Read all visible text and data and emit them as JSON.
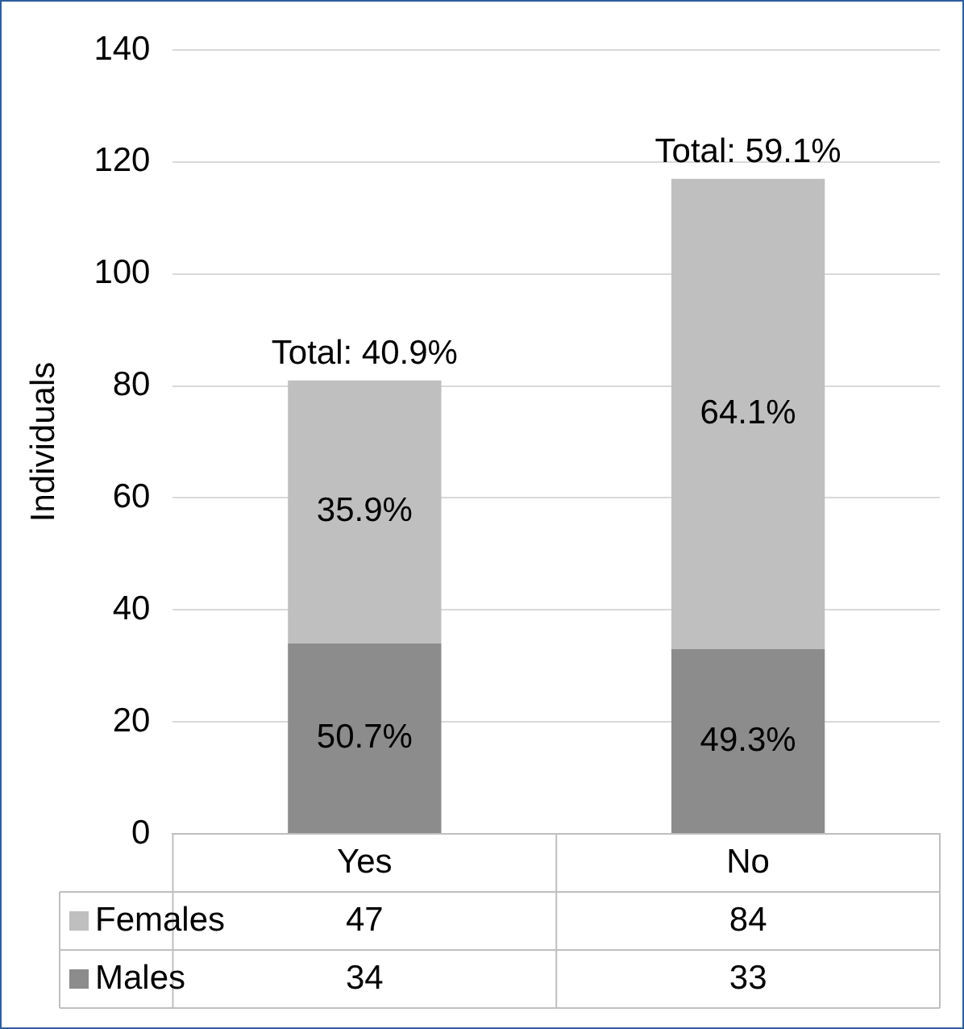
{
  "chart_data": {
    "type": "bar",
    "stacked": true,
    "ylabel": "Individuals",
    "categories": [
      "Yes",
      "No"
    ],
    "series": [
      {
        "name": "Males",
        "color": "#8c8c8c",
        "values": [
          34,
          33
        ]
      },
      {
        "name": "Females",
        "color": "#bfbfbf",
        "values": [
          47,
          84
        ]
      }
    ],
    "annotations": [
      "50.7%",
      "49.3%",
      "35.9%",
      "64.1%",
      "Total: 40.9%",
      "Total: 59.1%"
    ],
    "ylim": [
      0,
      140
    ],
    "yticks": [
      0,
      20,
      40,
      60,
      80,
      100,
      120,
      140
    ],
    "grid": "y",
    "legend": "bottom",
    "data_labels": true
  }
}
